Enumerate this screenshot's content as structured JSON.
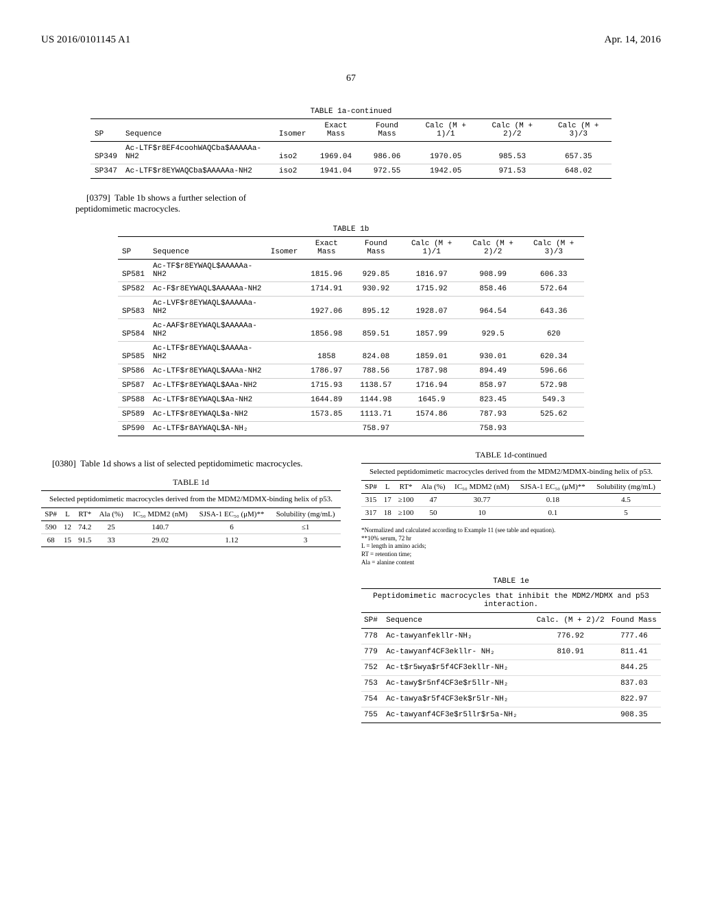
{
  "header": {
    "pub_number": "US 2016/0101145 A1",
    "date": "Apr. 14, 2016",
    "page": "67"
  },
  "table_1a": {
    "title": "TABLE 1a-continued",
    "columns": [
      "SP",
      "Sequence",
      "Isomer",
      "Exact Mass",
      "Found Mass",
      "Calc (M + 1)/1",
      "Calc (M + 2)/2",
      "Calc (M + 3)/3"
    ],
    "rows": [
      [
        "SP349",
        "Ac-LTF$r8EF4coohWAQCba$AAAAAa-NH2",
        "iso2",
        "1969.04",
        "986.06",
        "1970.05",
        "985.53",
        "657.35"
      ],
      [
        "SP347",
        "Ac-LTF$r8EYWAQCba$AAAAAa-NH2",
        "iso2",
        "1941.04",
        "972.55",
        "1942.05",
        "971.53",
        "648.02"
      ]
    ]
  },
  "para_0379": {
    "num": "[0379]",
    "text": "Table 1b shows a further selection of peptidomimetic macrocycles."
  },
  "table_1b": {
    "title": "TABLE 1b",
    "columns": [
      "SP",
      "Sequence",
      "Isomer",
      "Exact Mass",
      "Found Mass",
      "Calc (M + 1)/1",
      "Calc (M + 2)/2",
      "Calc (M + 3)/3"
    ],
    "rows": [
      [
        "SP581",
        "Ac-TF$r8EYWAQL$AAAAAa-NH2",
        "",
        "1815.96",
        "929.85",
        "1816.97",
        "908.99",
        "606.33"
      ],
      [
        "SP582",
        "Ac-F$r8EYWAQL$AAAAAa-NH2",
        "",
        "1714.91",
        "930.92",
        "1715.92",
        "858.46",
        "572.64"
      ],
      [
        "SP583",
        "Ac-LVF$r8EYWAQL$AAAAAa-NH2",
        "",
        "1927.06",
        "895.12",
        "1928.07",
        "964.54",
        "643.36"
      ],
      [
        "SP584",
        "Ac-AAF$r8EYWAQL$AAAAAa-NH2",
        "",
        "1856.98",
        "859.51",
        "1857.99",
        "929.5",
        "620"
      ],
      [
        "SP585",
        "Ac-LTF$r8EYWAQL$AAAAa-NH2",
        "",
        "1858",
        "824.08",
        "1859.01",
        "930.01",
        "620.34"
      ],
      [
        "SP586",
        "Ac-LTF$r8EYWAQL$AAAa-NH2",
        "",
        "1786.97",
        "788.56",
        "1787.98",
        "894.49",
        "596.66"
      ],
      [
        "SP587",
        "Ac-LTF$r8EYWAQL$AAa-NH2",
        "",
        "1715.93",
        "1138.57",
        "1716.94",
        "858.97",
        "572.98"
      ],
      [
        "SP588",
        "Ac-LTF$r8EYWAQL$Aa-NH2",
        "",
        "1644.89",
        "1144.98",
        "1645.9",
        "823.45",
        "549.3"
      ],
      [
        "SP589",
        "Ac-LTF$r8EYWAQL$a-NH2",
        "",
        "1573.85",
        "1113.71",
        "1574.86",
        "787.93",
        "525.62"
      ],
      [
        "SP590",
        "Ac-LTF$r8AYWAQL$A-NH₂",
        "",
        "",
        "758.97",
        "",
        "758.93",
        ""
      ]
    ]
  },
  "para_0380": {
    "num": "[0380]",
    "text": "Table 1d shows a list of selected peptidomimetic macrocycles."
  },
  "table_1d_left": {
    "title": "TABLE 1d",
    "caption": "Selected peptidomimetic macrocycles derived from the MDM2/MDMX-binding helix of p53.",
    "columns": [
      "SP#",
      "L",
      "RT*",
      "Ala (%)",
      "IC₅₀ MDM2 (nM)",
      "SJSA-1 EC₅₀ (μM)**",
      "Solubility (mg/mL)"
    ],
    "rows": [
      [
        "590",
        "12",
        "74.2",
        "25",
        "140.7",
        "6",
        "≤1"
      ],
      [
        "68",
        "15",
        "91.5",
        "33",
        "29.02",
        "1.12",
        "3"
      ]
    ]
  },
  "table_1d_right": {
    "title": "TABLE 1d-continued",
    "caption": "Selected peptidomimetic macrocycles derived from the MDM2/MDMX-binding helix of p53.",
    "columns": [
      "SP#",
      "L",
      "RT*",
      "Ala (%)",
      "IC₅₀ MDM2 (nM)",
      "SJSA-1 EC₅₀ (μM)**",
      "Solubility (mg/mL)"
    ],
    "rows": [
      [
        "315",
        "17",
        "≥100",
        "47",
        "30.77",
        "0.18",
        "4.5"
      ],
      [
        "317",
        "18",
        "≥100",
        "50",
        "10",
        "0.1",
        "5"
      ]
    ]
  },
  "footnotes": {
    "lines": [
      "*Normalized and calculated according to Example 11 (see table and equation).",
      "**10% serum, 72 hr",
      "L = length in amino acids;",
      "RT = retention time;",
      "Ala = alanine content"
    ]
  },
  "table_1e": {
    "title": "TABLE 1e",
    "caption": "Peptidomimetic macrocycles that inhibit the MDM2/MDMX and p53 interaction.",
    "columns": [
      "SP#",
      "Sequence",
      "Calc. (M + 2)/2",
      "Found Mass"
    ],
    "rows": [
      [
        "778",
        "Ac-tawyanfekllr-NH₂",
        "776.92",
        "777.46"
      ],
      [
        "779",
        "Ac-tawyanf4CF3ekllr- NH₂",
        "810.91",
        "811.41"
      ],
      [
        "752",
        "Ac-t$r5wya$r5f4CF3ekllr-NH₂",
        "",
        "844.25"
      ],
      [
        "753",
        "Ac-tawy$r5nf4CF3e$r5llr-NH₂",
        "",
        "837.03"
      ],
      [
        "754",
        "Ac-tawya$r5f4CF3ek$r5lr-NH₂",
        "",
        "822.97"
      ],
      [
        "755",
        "Ac-tawyanf4CF3e$r5llr$r5a-NH₂",
        "",
        "908.35"
      ]
    ]
  }
}
